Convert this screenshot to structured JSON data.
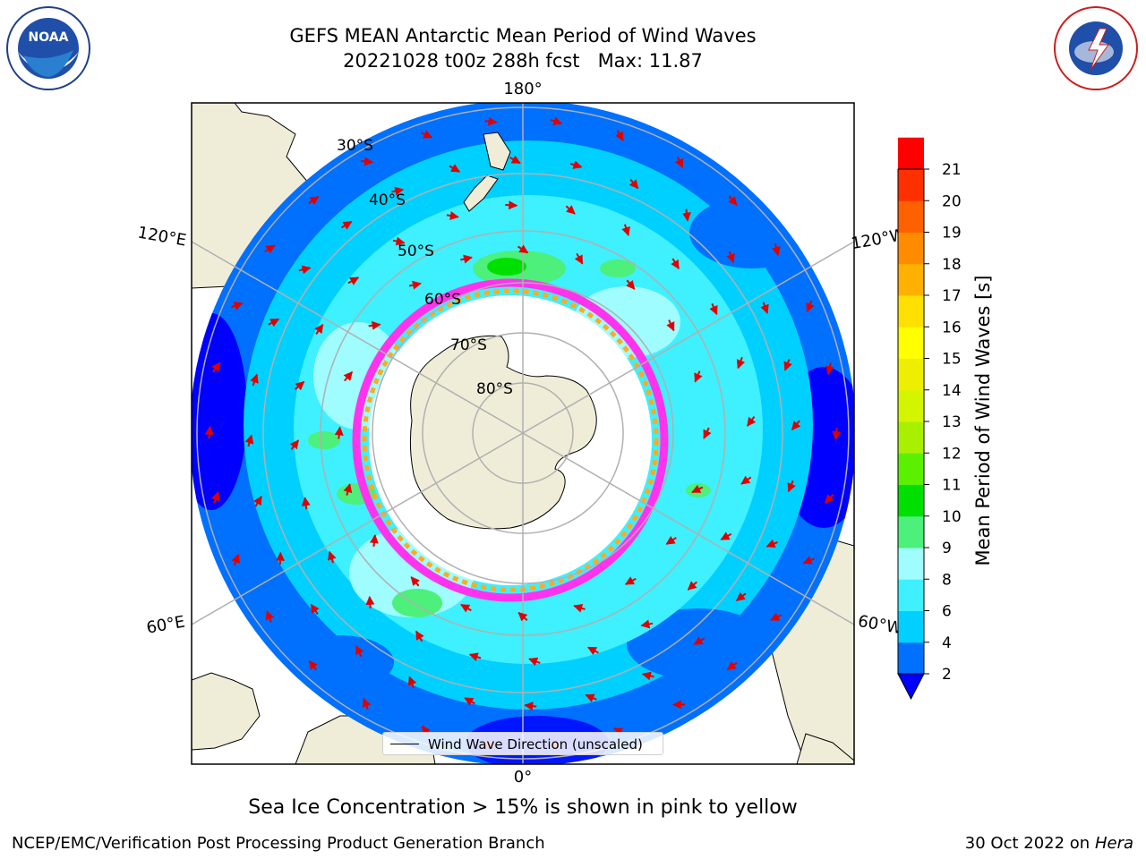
{
  "figure": {
    "title_line1": "GEFS MEAN Antarctic Mean Period of Wind Waves",
    "title_line2": "20221028 t00z 288h fcst   Max: 11.87",
    "footnote": "Sea Ice Concentration > 15% is shown in pink to yellow",
    "credit_left": "NCEP/EMC/Verification Post Processing Product Generation Branch",
    "credit_right_date": "30 Oct 2022 on",
    "credit_right_machine": "Hera",
    "logos": {
      "left": "noaa-logo",
      "right": "national-weather-service-logo"
    }
  },
  "map": {
    "projection": "south-polar-stereographic",
    "latitude_labels": [
      "30°S",
      "40°S",
      "50°S",
      "60°S",
      "70°S",
      "80°S"
    ],
    "longitude_labels": {
      "top": "180°",
      "bottom": "0°",
      "upper_left": "120°E",
      "upper_right": "120°W",
      "lower_left": "60°E",
      "lower_right": "60°W"
    },
    "legend_label": "Wind Wave Direction (unscaled)",
    "arrow_color": "#e00000",
    "land_color": "#efedd8",
    "sea_ice_mask_color": "#ffffff",
    "sea_ice_edge_colors": [
      "#ff33ee",
      "#ffaa22",
      "#ffee33"
    ]
  },
  "colorbar": {
    "label": "Mean Period of Wind Waves [s]",
    "ticks": [
      "2",
      "4",
      "6",
      "8",
      "9",
      "10",
      "11",
      "12",
      "13",
      "14",
      "15",
      "16",
      "17",
      "18",
      "19",
      "20",
      "21"
    ],
    "colors": [
      "#0070ff",
      "#00d0ff",
      "#3ff0ff",
      "#9ffcff",
      "#4cf07a",
      "#00e000",
      "#5af000",
      "#a8f000",
      "#d4f500",
      "#eeee00",
      "#ffff00",
      "#ffe000",
      "#ffb000",
      "#ff8c00",
      "#ff6000",
      "#ff3000",
      "#ff0000"
    ],
    "under_color": "#0000ff"
  }
}
